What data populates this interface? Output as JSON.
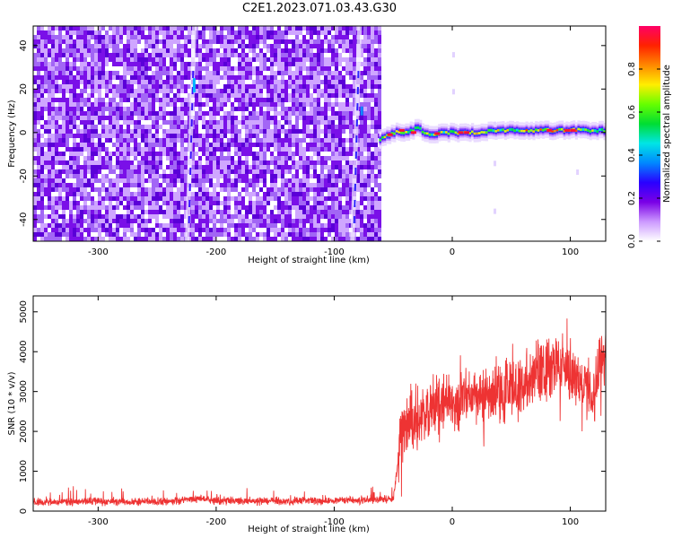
{
  "title": "C2E1.2023.071.03.43.G30",
  "chart_data": [
    {
      "type": "heatmap",
      "xlabel": "Height of straight line (km)",
      "ylabel": "Frequency (Hz)",
      "xlim": [
        -355,
        130
      ],
      "ylim": [
        -50,
        49
      ],
      "xticks": [
        -300,
        -200,
        -100,
        0,
        100
      ],
      "yticks": [
        -40,
        -20,
        0,
        20,
        40
      ],
      "grid": false,
      "noise_region_x": [
        -355,
        -62
      ],
      "signal_band": {
        "x": [
          -62,
          -50,
          -40,
          -30,
          -20,
          -10,
          0,
          20,
          40,
          60,
          80,
          100,
          130
        ],
        "center_freq": [
          -3,
          0,
          0,
          2,
          -1,
          0,
          0,
          0,
          1,
          1,
          1,
          1,
          1
        ]
      },
      "colorbar": {
        "label": "Normalized spectral amplitude",
        "ticks": [
          0.0,
          0.2,
          0.4,
          0.6,
          0.8
        ],
        "range": [
          0,
          1
        ],
        "colormap": [
          "#ffffff",
          "#cc99ff",
          "#7a00e6",
          "#2a00ff",
          "#0088ff",
          "#00e5e5",
          "#00dd33",
          "#66ff00",
          "#ffee00",
          "#ff8800",
          "#ff2200",
          "#ff0066"
        ]
      }
    },
    {
      "type": "line",
      "xlabel": "Height of straight line (km)",
      "ylabel": "SNR (10 * v/v)",
      "xlim": [
        -355,
        130
      ],
      "ylim": [
        0,
        5400
      ],
      "xticks": [
        -300,
        -200,
        -100,
        0,
        100
      ],
      "yticks": [
        0,
        1000,
        2000,
        3000,
        4000,
        5000
      ],
      "grid": false,
      "series": [
        {
          "color": "#ee3333",
          "x": [
            -355,
            -330,
            -300,
            -270,
            -240,
            -215,
            -200,
            -170,
            -140,
            -110,
            -90,
            -70,
            -50,
            -46,
            -44,
            -40,
            -30,
            -20,
            -10,
            0,
            10,
            20,
            30,
            40,
            50,
            60,
            70,
            80,
            90,
            95,
            100,
            110,
            120,
            125,
            130
          ],
          "values": [
            220,
            230,
            240,
            230,
            240,
            320,
            260,
            250,
            250,
            260,
            270,
            280,
            300,
            1200,
            1900,
            2100,
            2350,
            2500,
            2650,
            2700,
            2750,
            2900,
            2950,
            3000,
            3050,
            3200,
            3500,
            3550,
            3600,
            3900,
            3500,
            3200,
            2900,
            4000,
            3900
          ]
        }
      ]
    }
  ]
}
